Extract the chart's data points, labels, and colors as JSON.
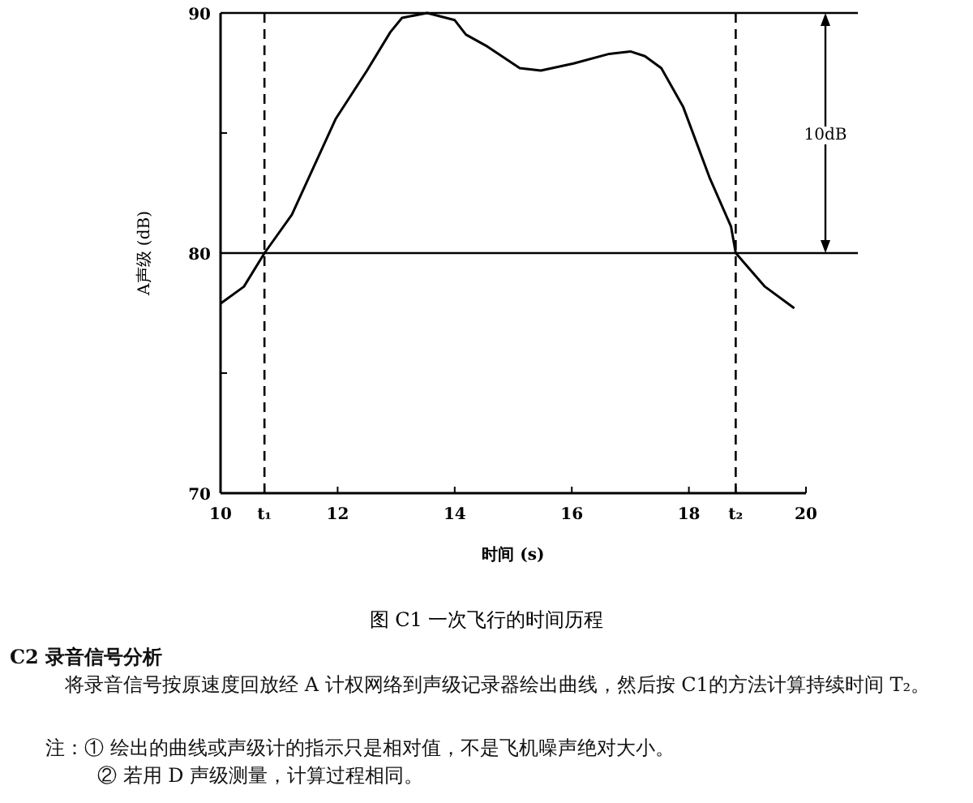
{
  "chart_data": {
    "type": "line",
    "title": "图  C1   一次飞行的时间历程",
    "xlabel": "时间 (s)",
    "ylabel": "A声级 (dB)",
    "xlim": [
      10,
      20
    ],
    "ylim": [
      70,
      90
    ],
    "xticks": [
      10,
      {
        "value": 10.75,
        "label": "t₁"
      },
      12,
      14,
      16,
      18,
      {
        "value": 18.8,
        "label": "t₂"
      },
      20
    ],
    "yticks": [
      70,
      {
        "value": 75,
        "label": null
      },
      80,
      {
        "value": 85,
        "label": null
      },
      90
    ],
    "series": [
      {
        "color": "#000000",
        "x": [
          10,
          10.4,
          10.75,
          11.22,
          11.97,
          12.5,
          12.9,
          13.1,
          13.53,
          14.0,
          14.19,
          14.56,
          15.11,
          15.47,
          16.03,
          16.64,
          17.0,
          17.25,
          17.53,
          17.9,
          18.36,
          18.72,
          18.8,
          19.3,
          19.8
        ],
        "values": [
          77.9,
          78.6,
          80,
          81.6,
          85.6,
          87.6,
          89.2,
          89.8,
          90,
          89.7,
          89.1,
          88.6,
          87.7,
          87.6,
          87.9,
          88.3,
          88.4,
          88.2,
          87.7,
          86.1,
          83.1,
          81.1,
          80,
          78.6,
          77.7
        ]
      }
    ],
    "ref_lines": [
      {
        "axis": "y",
        "value": 80,
        "color": "#000000",
        "line_style": "solid"
      },
      {
        "axis": "y",
        "value": 90,
        "color": "#000000",
        "line_style": "solid"
      },
      {
        "axis": "x",
        "value": 10.75,
        "color": "#000000",
        "line_style": "dashed"
      },
      {
        "axis": "x",
        "value": 18.8,
        "color": "#000000",
        "line_style": "dashed"
      }
    ],
    "annotations": [
      "10dB",
      "C2   录音信号分析",
      "将录音信号按原速度回放经 A 计权网络到声级记录器绘出曲线，然后按 C1的方法计算持续时间 T₂。",
      "注：① 绘出的曲线或声级计的指示只是相对值，不是飞机噪声绝对大小。",
      "② 若用 D 声级测量，计算过程相同。"
    ]
  }
}
